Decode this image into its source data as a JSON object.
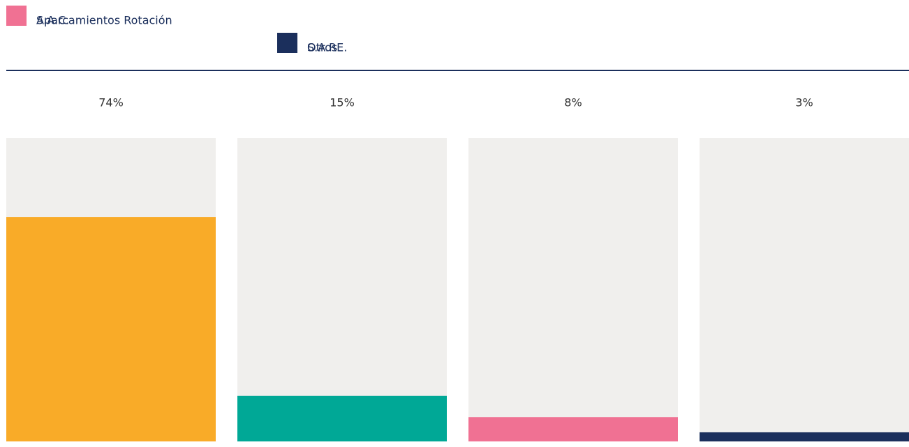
{
  "chart_data": {
    "type": "bar",
    "series": [
      {
        "name": "Aparcamientos Rotación",
        "color": "#f9ab28",
        "values": [
          74
        ],
        "value_labels": [
          "74%"
        ]
      },
      {
        "name": "S.A.RE.",
        "color": "#00a896",
        "values": [
          15
        ],
        "value_labels": [
          "15%"
        ]
      },
      {
        "name": "S.A.C.",
        "color": "#f07193",
        "values": [
          8
        ],
        "value_labels": [
          "8%"
        ]
      },
      {
        "name": "Otros",
        "color": "#1b2f5c",
        "values": [
          3
        ],
        "value_labels": [
          "3%"
        ]
      }
    ],
    "ylim": [
      0,
      100
    ],
    "track_color": "#f0efed",
    "legend": "top-left"
  }
}
